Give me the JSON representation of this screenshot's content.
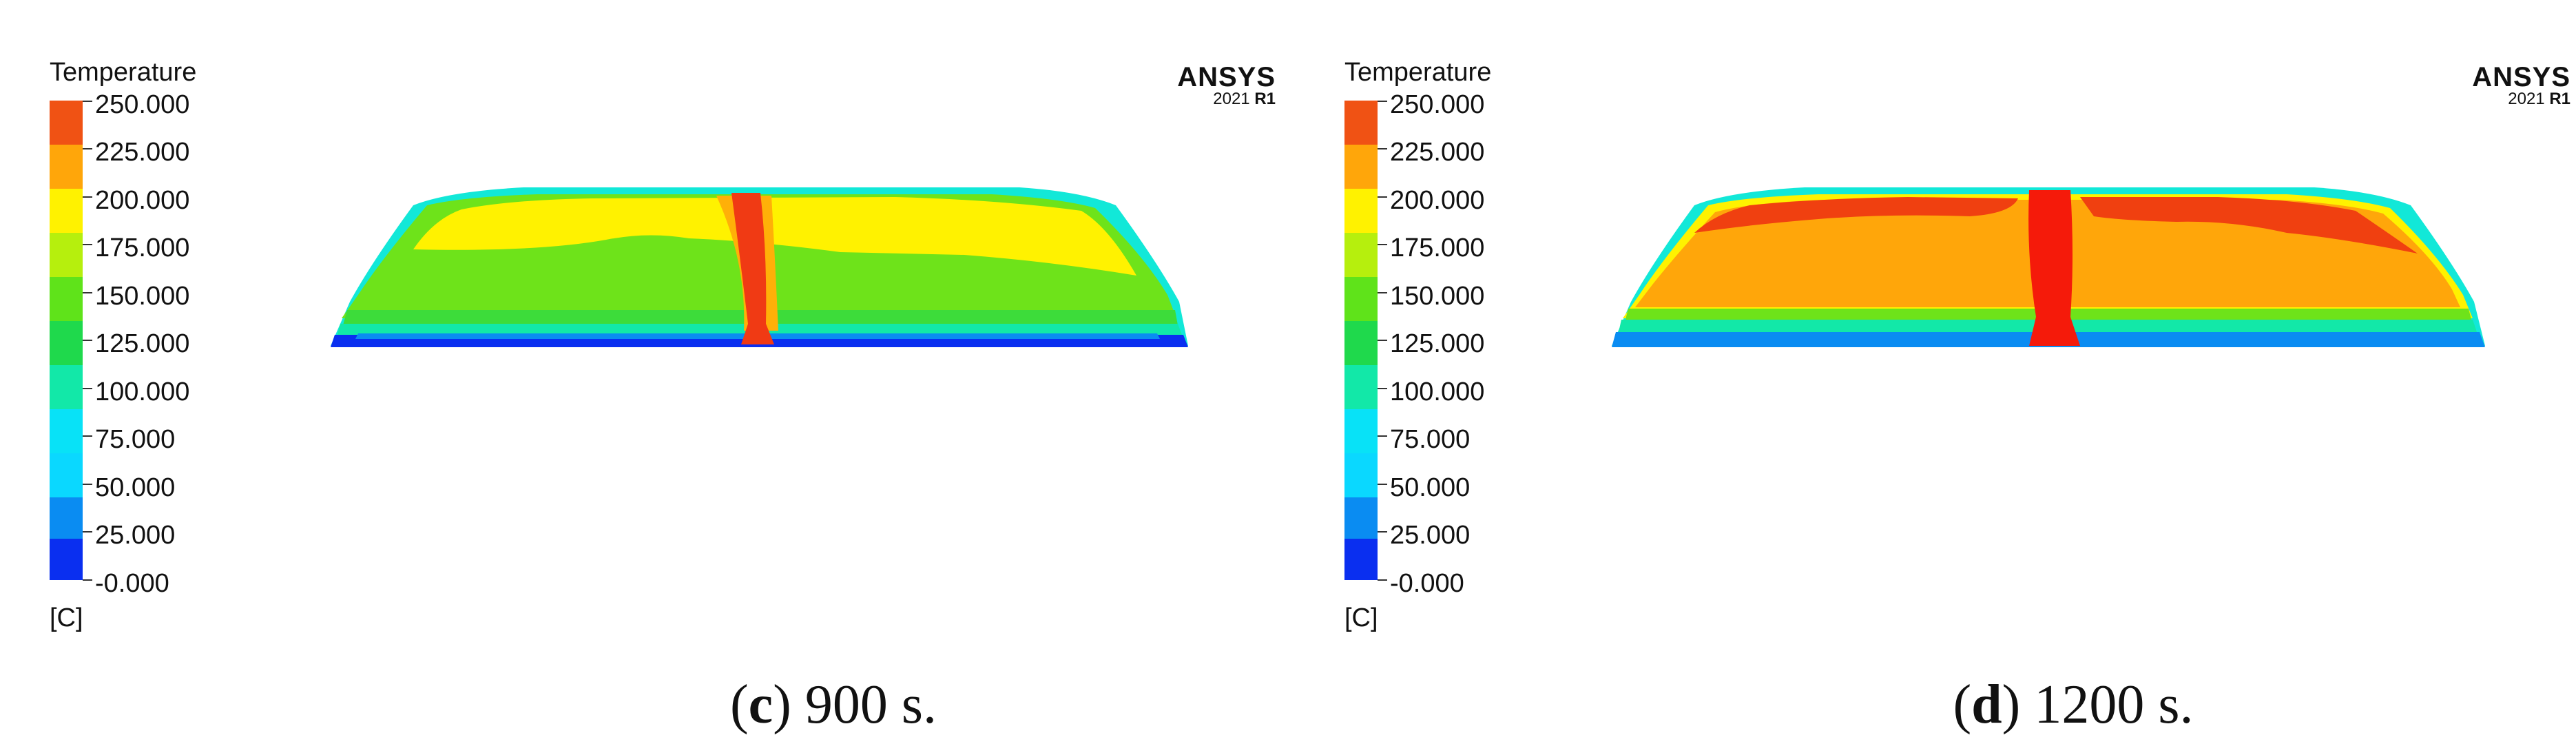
{
  "colors": [
    "#0a2ff0",
    "#0a8cf2",
    "#08e2f7",
    "#12e8a8",
    "#1fd94c",
    "#6ee31a",
    "#c9f30b",
    "#fff200",
    "#ffb008",
    "#ff8a05",
    "#f05214"
  ],
  "panels": [
    {
      "legend": {
        "title": "Temperature",
        "ticks": [
          "250.000",
          "225.000",
          "200.000",
          "175.000",
          "150.000",
          "125.000",
          "100.000",
          "75.000",
          "50.000",
          "25.000",
          "-0.000"
        ],
        "unit": "[C]"
      },
      "brand": {
        "name": "ANSYS",
        "version": "2021",
        "release": "R1"
      },
      "caption": {
        "open": "(",
        "letter": "c",
        "rest": ") 900 s."
      }
    },
    {
      "legend": {
        "title": "Temperature",
        "ticks": [
          "250.000",
          "225.000",
          "200.000",
          "175.000",
          "150.000",
          "125.000",
          "100.000",
          "75.000",
          "50.000",
          "25.000",
          "-0.000"
        ],
        "unit": "[C]"
      },
      "brand": {
        "name": "ANSYS",
        "version": "2021",
        "release": "R1"
      },
      "caption": {
        "open": "(",
        "letter": "d",
        "rest": ") 1200 s."
      }
    }
  ]
}
